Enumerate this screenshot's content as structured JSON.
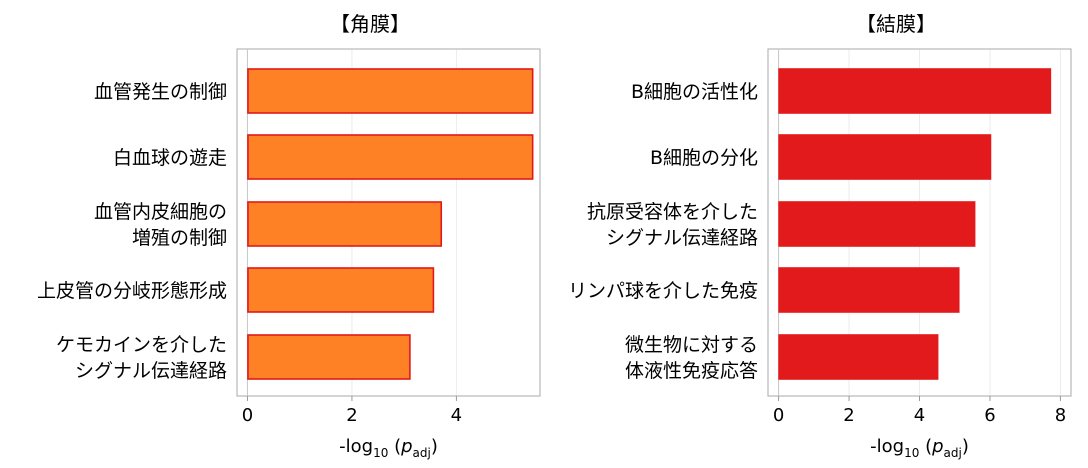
{
  "chart_data": [
    {
      "type": "bar",
      "orientation": "horizontal",
      "title": "【角膜】",
      "categories": [
        [
          "血管発生の制御"
        ],
        [
          "白血球の遊走"
        ],
        [
          "血管内皮細胞の",
          "増殖の制御"
        ],
        [
          "上皮管の分岐形態形成"
        ],
        [
          "ケモカインを介した",
          "シグナル伝達経路"
        ]
      ],
      "values": [
        5.45,
        5.45,
        3.7,
        3.55,
        3.1
      ],
      "xlabel": {
        "prefix": "-log",
        "sub": "10",
        "open": " (",
        "var": "p",
        "var_sub": "adj",
        "close": ")"
      },
      "xlim": [
        -0.2,
        5.6
      ],
      "xticks": [
        "0",
        "2",
        "4"
      ],
      "xtick_values": [
        0,
        2,
        4
      ],
      "grid": true,
      "bar_fill": "#fe8125",
      "bar_stroke": "#e01a1a"
    },
    {
      "type": "bar",
      "orientation": "horizontal",
      "title": "【結膜】",
      "categories": [
        [
          "B細胞の活性化"
        ],
        [
          "B細胞の分化"
        ],
        [
          "抗原受容体を介した",
          "シグナル伝達経路"
        ],
        [
          "リンパ球を介した免疫"
        ],
        [
          "微生物に対する",
          "体液性免疫応答"
        ]
      ],
      "values": [
        7.7,
        6.0,
        5.55,
        5.1,
        4.5
      ],
      "xlabel": {
        "prefix": "-log",
        "sub": "10",
        "open": " (",
        "var": "p",
        "var_sub": "adj",
        "close": ")"
      },
      "xlim": [
        -0.3,
        8.3
      ],
      "xticks": [
        "0",
        "2",
        "4",
        "6",
        "8"
      ],
      "xtick_values": [
        0,
        2,
        4,
        6,
        8
      ],
      "grid": true,
      "bar_fill": "#e31a1c",
      "bar_stroke": "#e31a1c"
    }
  ]
}
